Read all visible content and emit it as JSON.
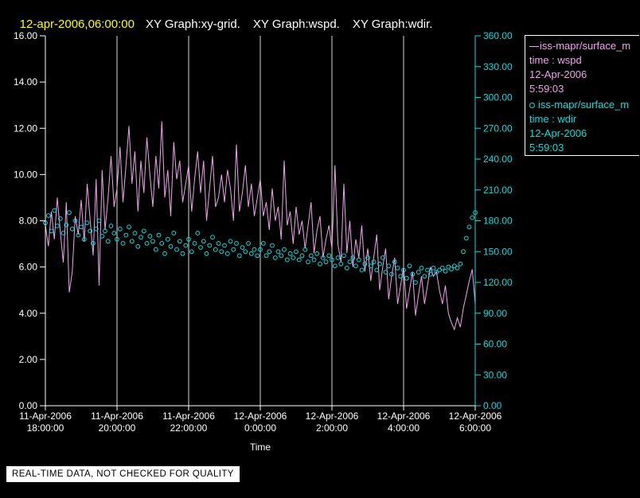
{
  "header": {
    "timestamp": "12-apr-2006,06:00:00",
    "titles": [
      "XY Graph:xy-grid.",
      "XY Graph:wspd.",
      "XY Graph:wdir."
    ]
  },
  "colors": {
    "background": "#000000",
    "title_accent": "#ffff00",
    "text": "#ffffff",
    "wspd": "#f2a2ee",
    "wdir": "#00e0e0",
    "grid": "#d9d9d9"
  },
  "legend": {
    "entries": [
      {
        "marker": "line",
        "source": "iss-mapr/surface_m",
        "field": "time : wspd",
        "date": "12-Apr-2006",
        "time": "5:59:03",
        "color": "#f2a2ee"
      },
      {
        "marker": "circle",
        "source": "iss-mapr/surface_m",
        "field": "time : wdir",
        "date": "12-Apr-2006",
        "time": "5:59:03",
        "color": "#00e0e0"
      }
    ]
  },
  "footer": {
    "notice": "REAL-TIME DATA, NOT CHECKED FOR QUALITY"
  },
  "chart_data": {
    "type": "line",
    "title": "XY Graph: wspd (left axis, line) and wdir (right axis, scatter) vs Time",
    "xlabel": "Time",
    "x_range_minutes": [
      0,
      720
    ],
    "x_ticks": [
      {
        "t": 0,
        "date": "11-Apr-2006",
        "time": "18:00:00"
      },
      {
        "t": 120,
        "date": "11-Apr-2006",
        "time": "20:00:00"
      },
      {
        "t": 240,
        "date": "11-Apr-2006",
        "time": "22:00:00"
      },
      {
        "t": 360,
        "date": "12-Apr-2006",
        "time": "0:00:00"
      },
      {
        "t": 480,
        "date": "12-Apr-2006",
        "time": "2:00:00"
      },
      {
        "t": 600,
        "date": "12-Apr-2006",
        "time": "4:00:00"
      },
      {
        "t": 720,
        "date": "12-Apr-2006",
        "time": "6:00:00"
      }
    ],
    "left_axis": {
      "min": 0,
      "max": 16,
      "ticks": [
        "0.00",
        "2.00",
        "4.00",
        "6.00",
        "8.00",
        "10.00",
        "12.00",
        "14.00",
        "16.00"
      ]
    },
    "right_axis": {
      "min": 0,
      "max": 360,
      "ticks": [
        "0.00",
        "30.00",
        "60.00",
        "90.00",
        "120.00",
        "150.00",
        "180.00",
        "210.00",
        "240.00",
        "270.00",
        "300.00",
        "330.00",
        "360.00"
      ]
    },
    "grid": "vertical",
    "legend_position": "top-right",
    "series": [
      {
        "name": "wspd",
        "axis": "left",
        "style": "line",
        "color": "#f2a2ee",
        "x_step_minutes": 5,
        "values": [
          7.8,
          6.9,
          8.4,
          7.2,
          9.0,
          7.5,
          6.2,
          8.8,
          4.9,
          5.8,
          8.2,
          7.4,
          8.9,
          7.1,
          9.6,
          8.0,
          6.5,
          9.8,
          5.2,
          10.2,
          7.6,
          9.0,
          10.8,
          8.6,
          9.4,
          11.2,
          8.8,
          10.4,
          12.1,
          9.6,
          11.0,
          8.4,
          10.6,
          9.2,
          11.6,
          10.0,
          8.6,
          10.8,
          9.4,
          12.3,
          9.0,
          10.2,
          8.2,
          11.4,
          9.8,
          10.6,
          8.8,
          9.6,
          10.4,
          8.4,
          9.8,
          11.0,
          9.2,
          10.6,
          8.0,
          9.4,
          10.8,
          8.6,
          9.0,
          10.0,
          8.8,
          10.2,
          9.4,
          8.0,
          11.3,
          8.4,
          9.2,
          10.4,
          8.6,
          9.6,
          8.2,
          9.0,
          9.8,
          8.2,
          8.8,
          7.6,
          9.4,
          8.0,
          8.6,
          7.2,
          10.6,
          7.8,
          8.4,
          7.0,
          8.6,
          7.4,
          8.0,
          6.8,
          7.8,
          8.8,
          6.6,
          7.6,
          8.2,
          6.4,
          7.2,
          7.8,
          6.8,
          10.4,
          7.0,
          6.2,
          9.6,
          6.6,
          8.0,
          6.0,
          7.2,
          6.4,
          7.8,
          5.8,
          6.8,
          5.4,
          6.4,
          7.4,
          5.0,
          6.0,
          6.8,
          4.6,
          5.6,
          6.4,
          4.4,
          5.2,
          6.0,
          4.2,
          5.0,
          5.8,
          3.9,
          4.8,
          5.6,
          4.4,
          5.2,
          6.0,
          5.6,
          5.8,
          5.0,
          4.4,
          5.2,
          4.0,
          3.6,
          3.3,
          3.8,
          3.4,
          4.2,
          4.8,
          5.4,
          5.9,
          4.4
        ]
      },
      {
        "name": "wdir",
        "axis": "right",
        "style": "scatter",
        "color": "#00e0e0",
        "x_step_minutes": 5,
        "values": [
          178,
          185,
          170,
          190,
          175,
          182,
          168,
          176,
          188,
          172,
          180,
          166,
          174,
          162,
          178,
          170,
          158,
          172,
          180,
          165,
          170,
          160,
          175,
          168,
          162,
          172,
          158,
          166,
          174,
          160,
          168,
          155,
          164,
          170,
          158,
          165,
          160,
          152,
          166,
          158,
          148,
          162,
          155,
          168,
          152,
          160,
          148,
          156,
          162,
          150,
          158,
          168,
          154,
          160,
          148,
          156,
          164,
          152,
          158,
          150,
          156,
          148,
          160,
          152,
          158,
          146,
          154,
          150,
          158,
          148,
          152,
          146,
          152,
          158,
          146,
          150,
          156,
          144,
          150,
          146,
          152,
          142,
          148,
          144,
          150,
          142,
          146,
          152,
          140,
          146,
          142,
          148,
          138,
          144,
          140,
          146,
          142,
          136,
          144,
          138,
          146,
          134,
          140,
          144,
          136,
          142,
          132,
          138,
          144,
          136,
          140,
          132,
          138,
          144,
          130,
          136,
          128,
          140,
          134,
          126,
          132,
          124,
          136,
          128,
          120,
          130,
          134,
          126,
          132,
          128,
          134,
          130,
          132,
          134,
          131,
          135,
          133,
          136,
          134,
          138,
          150,
          163,
          174,
          183,
          188
        ]
      }
    ]
  }
}
